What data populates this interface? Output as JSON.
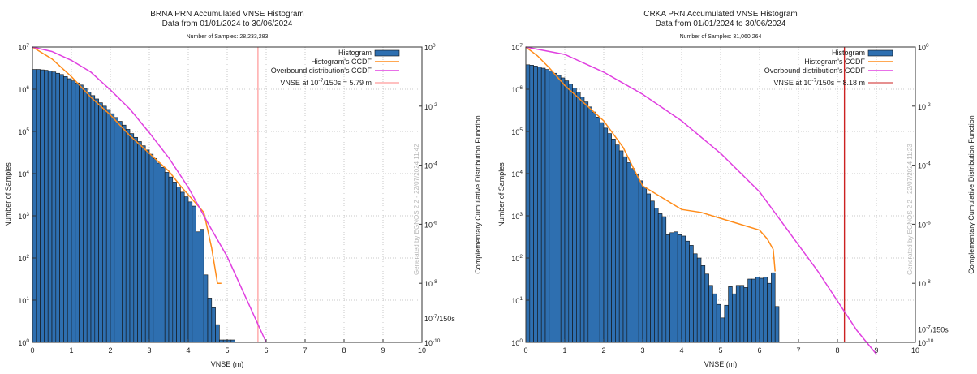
{
  "chart_data": [
    {
      "type": "bar",
      "title": "BRNA PRN Accumulated VNSE Histogram",
      "subtitle": "Data from 01/01/2024 to 30/06/2024",
      "samples_text": "Number of Samples: 28,233,283",
      "xlabel": "VNSE (m)",
      "ylabel": "Number of Samples",
      "y2label": "Complementary Cumulative Distribution Function",
      "xlim": [
        0,
        10
      ],
      "ylim_log10": [
        0,
        7
      ],
      "y2lim_log10": [
        -10,
        0
      ],
      "x_ticks": [
        "0",
        "1",
        "2",
        "3",
        "4",
        "5",
        "6",
        "7",
        "8",
        "9",
        "10"
      ],
      "y_ticks": [
        {
          "base": "10",
          "exp": "0"
        },
        {
          "base": "10",
          "exp": "1"
        },
        {
          "base": "10",
          "exp": "2"
        },
        {
          "base": "10",
          "exp": "3"
        },
        {
          "base": "10",
          "exp": "4"
        },
        {
          "base": "10",
          "exp": "5"
        },
        {
          "base": "10",
          "exp": "6"
        },
        {
          "base": "10",
          "exp": "7"
        }
      ],
      "y2_ticks": [
        {
          "base": "10",
          "exp": "0",
          "v": 0
        },
        {
          "base": "10",
          "exp": "-2",
          "v": -2
        },
        {
          "base": "10",
          "exp": "-4",
          "v": -4
        },
        {
          "base": "10",
          "exp": "-6",
          "v": -6
        },
        {
          "base": "10",
          "exp": "-8",
          "v": -8
        },
        {
          "base": "10",
          "exp": "-10",
          "v": -10
        }
      ],
      "y2_special_label": {
        "base": "10",
        "exp": "-7",
        "suffix": "/150s",
        "v": -9.18
      },
      "grid": true,
      "legend_position": "top-right",
      "legend": {
        "histogram": "Histogram",
        "hist_ccdf": "Histogram's CCDF",
        "overbound": "Overbound distribution's CCDF",
        "vnse_prefix": "VNSE at 10",
        "vnse_exp": "-7",
        "vnse_suffix": "/150s = 5.79 m"
      },
      "vnse_threshold_m": 5.79,
      "watermark": "Generated by EGNOS 2.2 - 22/07/2024 11:42",
      "bin_width_m": 0.1,
      "series": [
        {
          "name": "Histogram",
          "kind": "bar",
          "x_start": 0,
          "values_log10": [
            6.47,
            6.47,
            6.46,
            6.45,
            6.43,
            6.41,
            6.38,
            6.35,
            6.3,
            6.25,
            6.2,
            6.15,
            6.1,
            6.02,
            5.93,
            5.85,
            5.77,
            5.68,
            5.6,
            5.52,
            5.42,
            5.33,
            5.24,
            5.15,
            5.05,
            4.95,
            4.86,
            4.76,
            4.66,
            4.56,
            4.46,
            4.36,
            4.25,
            4.15,
            4.03,
            3.92,
            3.8,
            3.68,
            3.56,
            3.45,
            3.33,
            3.23,
            2.62,
            2.68,
            1.6,
            1.05,
            0.82,
            0.42,
            0.0,
            0.0,
            0.0,
            0.0
          ]
        },
        {
          "name": "Histogram's CCDF",
          "kind": "line",
          "color": "#ff8c1a",
          "x": [
            0.0,
            0.5,
            1.0,
            1.5,
            2.0,
            2.5,
            3.0,
            3.5,
            3.8,
            4.0,
            4.2,
            4.4,
            4.6,
            4.75,
            4.85
          ],
          "ccdf_log10": [
            0.0,
            -0.4,
            -1.0,
            -1.7,
            -2.3,
            -3.0,
            -3.6,
            -4.2,
            -4.7,
            -5.0,
            -5.3,
            -5.6,
            -6.8,
            -8.0,
            -8.0
          ]
        },
        {
          "name": "Overbound distribution's CCDF",
          "kind": "line",
          "color": "#e040e0",
          "x": [
            0.0,
            0.5,
            1.0,
            1.5,
            2.0,
            2.5,
            3.0,
            3.5,
            4.0,
            4.5,
            5.0,
            5.5,
            6.0
          ],
          "ccdf_log10": [
            0.0,
            -0.15,
            -0.45,
            -0.85,
            -1.45,
            -2.1,
            -2.9,
            -3.75,
            -4.75,
            -5.95,
            -7.1,
            -8.55,
            -10.0
          ]
        }
      ]
    },
    {
      "type": "bar",
      "title": "CRKA PRN Accumulated VNSE Histogram",
      "subtitle": "Data from 01/01/2024 to 30/06/2024",
      "samples_text": "Number of Samples: 31,060,264",
      "xlabel": "VNSE (m)",
      "ylabel": "Number of Samples",
      "y2label": "Complementary Cumulative Distribution Function",
      "xlim": [
        0,
        10
      ],
      "ylim_log10": [
        0,
        7
      ],
      "y2lim_log10": [
        -10,
        0
      ],
      "x_ticks": [
        "0",
        "1",
        "2",
        "3",
        "4",
        "5",
        "6",
        "7",
        "8",
        "9",
        "10"
      ],
      "y_ticks": [
        {
          "base": "10",
          "exp": "0"
        },
        {
          "base": "10",
          "exp": "1"
        },
        {
          "base": "10",
          "exp": "2"
        },
        {
          "base": "10",
          "exp": "3"
        },
        {
          "base": "10",
          "exp": "4"
        },
        {
          "base": "10",
          "exp": "5"
        },
        {
          "base": "10",
          "exp": "6"
        },
        {
          "base": "10",
          "exp": "7"
        }
      ],
      "y2_ticks": [
        {
          "base": "10",
          "exp": "0",
          "v": 0
        },
        {
          "base": "10",
          "exp": "-2",
          "v": -2
        },
        {
          "base": "10",
          "exp": "-4",
          "v": -4
        },
        {
          "base": "10",
          "exp": "-6",
          "v": -6
        },
        {
          "base": "10",
          "exp": "-8",
          "v": -8
        },
        {
          "base": "10",
          "exp": "-10",
          "v": -10
        }
      ],
      "y2_special_label": {
        "base": "10",
        "exp": "-7",
        "suffix": "/150s",
        "v": -9.55
      },
      "grid": true,
      "legend_position": "top-right",
      "legend": {
        "histogram": "Histogram",
        "hist_ccdf": "Histogram's CCDF",
        "overbound": "Overbound distribution's CCDF",
        "vnse_prefix": "VNSE at 10",
        "vnse_exp": "-7",
        "vnse_suffix": "/150s = 8.18 m"
      },
      "vnse_threshold_m": 8.18,
      "watermark": "Generated by EGNOS 2.2 - 22/07/2024 11:23",
      "bin_width_m": 0.1,
      "series": [
        {
          "name": "Histogram",
          "kind": "bar",
          "x_start": 0,
          "values_log10": [
            6.58,
            6.57,
            6.55,
            6.53,
            6.5,
            6.47,
            6.43,
            6.38,
            6.33,
            6.27,
            6.2,
            6.12,
            6.03,
            5.93,
            5.82,
            5.7,
            5.58,
            5.46,
            5.34,
            5.21,
            5.08,
            4.95,
            4.82,
            4.68,
            4.54,
            4.4,
            4.26,
            4.12,
            3.98,
            3.83,
            3.68,
            3.52,
            3.35,
            3.18,
            3.05,
            2.98,
            2.55,
            2.6,
            2.62,
            2.55,
            2.52,
            2.4,
            2.3,
            2.1,
            2.0,
            1.82,
            1.62,
            1.35,
            1.15,
            0.9,
            0.58,
            0.88,
            1.32,
            1.15,
            1.35,
            1.35,
            1.3,
            1.5,
            1.5,
            1.55,
            1.52,
            1.55,
            1.4,
            1.65,
            0.85
          ]
        },
        {
          "name": "Histogram's CCDF",
          "kind": "line",
          "color": "#ff8c1a",
          "x": [
            0.0,
            0.3,
            0.6,
            1.0,
            1.5,
            2.0,
            2.5,
            2.8,
            3.0,
            3.5,
            4.0,
            4.5,
            5.0,
            5.5,
            6.0,
            6.2,
            6.35,
            6.4
          ],
          "ccdf_log10": [
            0.0,
            -0.3,
            -0.7,
            -1.3,
            -1.9,
            -2.5,
            -3.4,
            -4.2,
            -4.7,
            -5.1,
            -5.5,
            -5.6,
            -5.8,
            -6.0,
            -6.2,
            -6.5,
            -6.85,
            -7.6
          ]
        },
        {
          "name": "Overbound distribution's CCDF",
          "kind": "line",
          "color": "#e040e0",
          "x": [
            0.0,
            1.0,
            2.0,
            3.0,
            4.0,
            5.0,
            6.0,
            6.5,
            7.0,
            7.5,
            8.0,
            8.5,
            9.0
          ],
          "ccdf_log10": [
            0.0,
            -0.25,
            -0.85,
            -1.6,
            -2.5,
            -3.6,
            -4.9,
            -5.8,
            -6.7,
            -7.6,
            -8.6,
            -9.6,
            -10.4
          ]
        }
      ]
    }
  ]
}
